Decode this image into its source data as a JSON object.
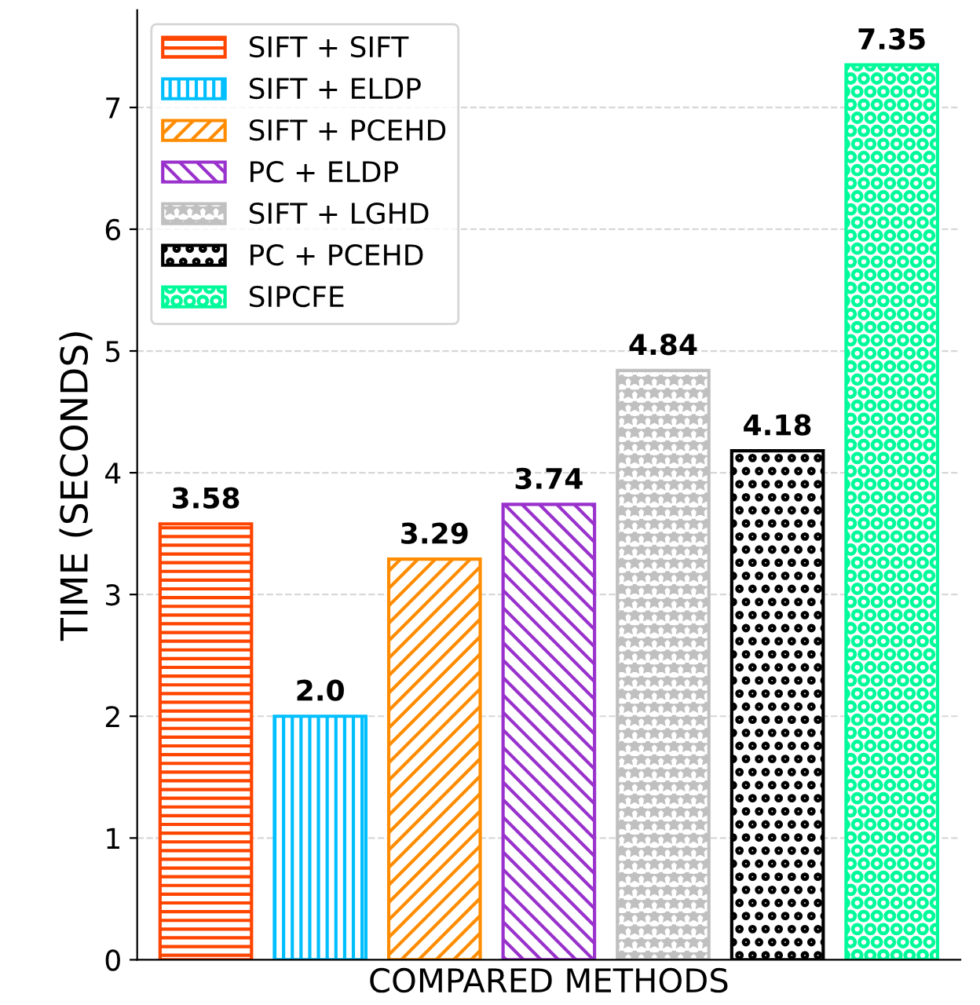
{
  "chart_data": {
    "type": "bar",
    "xlabel": "COMPARED METHODS",
    "ylabel": "TIME (SECONDS)",
    "categories": [
      null,
      null,
      null,
      null,
      null,
      null,
      null
    ],
    "series": [
      {
        "name": "SIFT + SIFT",
        "color": "#ff4500",
        "values": [
          3.58,
          null,
          null,
          null,
          null,
          null,
          null
        ],
        "value_labels": [
          "3.58",
          null,
          null,
          null,
          null,
          null,
          null
        ]
      },
      {
        "name": "SIFT + ELDP",
        "color": "#00bfff",
        "values": [
          null,
          2.0,
          null,
          null,
          null,
          null,
          null
        ],
        "value_labels": [
          null,
          "2.0",
          null,
          null,
          null,
          null,
          null
        ]
      },
      {
        "name": "SIFT + PCEHD",
        "color": "#ff8c00",
        "values": [
          null,
          null,
          3.29,
          null,
          null,
          null,
          null
        ],
        "value_labels": [
          null,
          null,
          "3.29",
          null,
          null,
          null,
          null
        ]
      },
      {
        "name": "PC + ELDP",
        "color": "#9932cc",
        "values": [
          null,
          null,
          null,
          3.74,
          null,
          null,
          null
        ],
        "value_labels": [
          null,
          null,
          null,
          "3.74",
          null,
          null,
          null
        ]
      },
      {
        "name": "SIFT + LGHD",
        "color": "#c0c0c0",
        "values": [
          null,
          null,
          null,
          null,
          4.84,
          null,
          null
        ],
        "value_labels": [
          null,
          null,
          null,
          null,
          "4.84",
          null,
          null
        ]
      },
      {
        "name": "PC + PCEHD",
        "color": "#000000",
        "values": [
          null,
          null,
          null,
          null,
          null,
          4.18,
          null
        ],
        "value_labels": [
          null,
          null,
          null,
          null,
          null,
          "4.18",
          null
        ]
      },
      {
        "name": "SIPCFE",
        "color": "#00fa9a",
        "values": [
          null,
          null,
          null,
          null,
          null,
          null,
          7.35
        ],
        "value_labels": [
          null,
          null,
          null,
          null,
          null,
          null,
          "7.35"
        ]
      }
    ],
    "ylim": [
      0,
      7.8
    ],
    "yticks": [
      0,
      1,
      2,
      3,
      4,
      5,
      6,
      7
    ],
    "grid": "y",
    "legend": "top left"
  }
}
